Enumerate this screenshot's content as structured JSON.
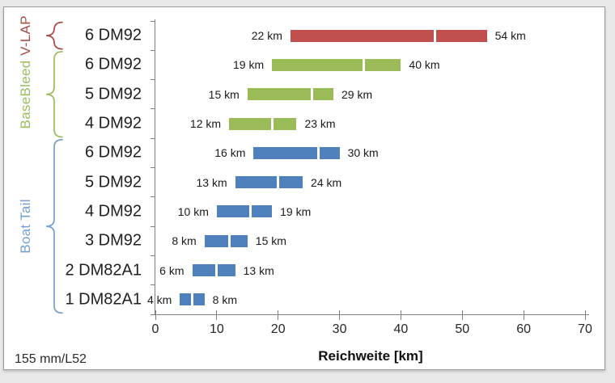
{
  "chart_data": {
    "type": "bar",
    "subtype": "horizontal-range",
    "title": "",
    "xlabel": "Reichweite [km]",
    "ylabel": "",
    "xlim": [
      0,
      70
    ],
    "xticks": [
      0,
      10,
      20,
      30,
      40,
      50,
      60,
      70
    ],
    "grid": false,
    "unit": "km",
    "footnote": "155 mm/L52",
    "groups": [
      {
        "name": "V-LAP",
        "bar_color": "#C0504D",
        "label_color": "#A84D4A"
      },
      {
        "name": "BaseBleed",
        "bar_color": "#9BBB59",
        "label_color": "#9DBA5D"
      },
      {
        "name": "Boat Tail",
        "bar_color": "#4F81BD",
        "label_color": "#74A0D0"
      }
    ],
    "rows": [
      {
        "group": "V-LAP",
        "charge": "6 DM92",
        "min": 22,
        "max": 54,
        "divider": 45.5,
        "min_label": "22 km",
        "max_label": "54 km"
      },
      {
        "group": "BaseBleed",
        "charge": "6 DM92",
        "min": 19,
        "max": 40,
        "divider": 34,
        "min_label": "19 km",
        "max_label": "40 km"
      },
      {
        "group": "BaseBleed",
        "charge": "5 DM92",
        "min": 15,
        "max": 29,
        "divider": 25.5,
        "min_label": "15 km",
        "max_label": "29 km"
      },
      {
        "group": "BaseBleed",
        "charge": "4 DM92",
        "min": 12,
        "max": 23,
        "divider": 19,
        "min_label": "12 km",
        "max_label": "23 km"
      },
      {
        "group": "Boat Tail",
        "charge": "6 DM92",
        "min": 16,
        "max": 30,
        "divider": 26.5,
        "min_label": "16 km",
        "max_label": "30 km"
      },
      {
        "group": "Boat Tail",
        "charge": "5 DM92",
        "min": 13,
        "max": 24,
        "divider": 20,
        "min_label": "13 km",
        "max_label": "24 km"
      },
      {
        "group": "Boat Tail",
        "charge": "4 DM92",
        "min": 10,
        "max": 19,
        "divider": 15.5,
        "min_label": "10 km",
        "max_label": "19 km"
      },
      {
        "group": "Boat Tail",
        "charge": "3 DM92",
        "min": 8,
        "max": 15,
        "divider": 12,
        "min_label": "8 km",
        "max_label": "15 km"
      },
      {
        "group": "Boat Tail",
        "charge": "2 DM82A1",
        "min": 6,
        "max": 13,
        "divider": 10,
        "min_label": "6 km",
        "max_label": "13 km"
      },
      {
        "group": "Boat Tail",
        "charge": "1 DM82A1",
        "min": 4,
        "max": 8,
        "divider": 6,
        "min_label": "4 km",
        "max_label": "8 km"
      }
    ],
    "colors": {
      "axis": "#808080",
      "tick_text": "#262626",
      "category_text": "#1f1f1f",
      "value_text": "#1a1a1a"
    }
  }
}
